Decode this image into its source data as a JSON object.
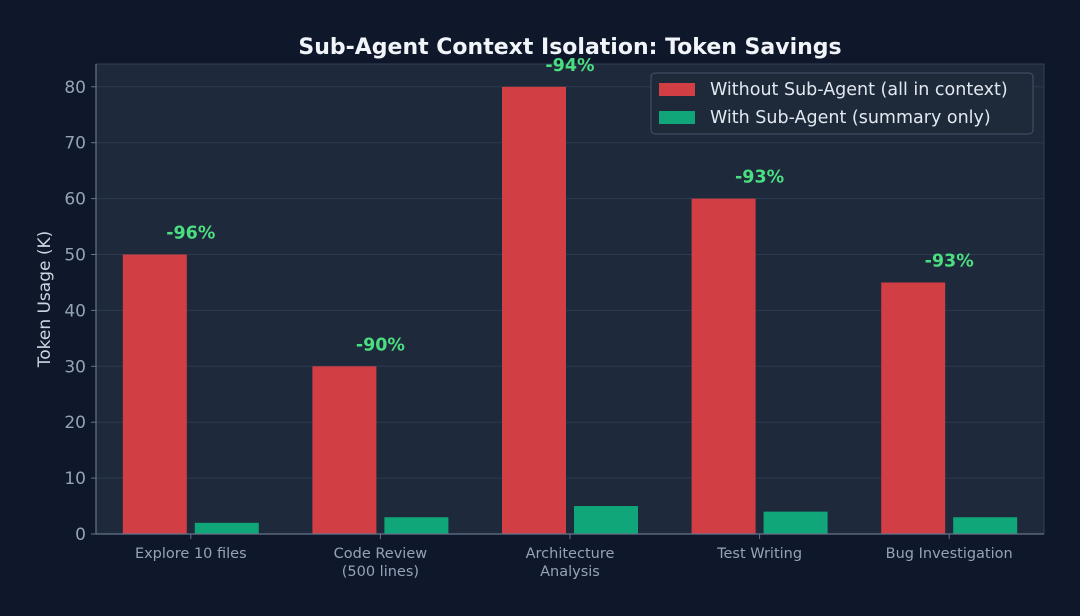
{
  "chart_data": {
    "type": "bar",
    "title": "Sub-Agent Context Isolation: Token Savings",
    "xlabel": "",
    "ylabel": "Token Usage (K)",
    "ylim": [
      0,
      84
    ],
    "yticks": [
      0,
      10,
      20,
      30,
      40,
      50,
      60,
      70,
      80
    ],
    "grid": true,
    "legend_position": "top-right",
    "categories": [
      [
        "Explore 10 files"
      ],
      [
        "Code Review",
        "(500 lines)"
      ],
      [
        "Architecture",
        "Analysis"
      ],
      [
        "Test Writing"
      ],
      [
        "Bug Investigation"
      ]
    ],
    "series": [
      {
        "name": "Without Sub-Agent (all in context)",
        "color": "#d13f45",
        "values": [
          50,
          30,
          80,
          60,
          45
        ]
      },
      {
        "name": "With Sub-Agent (summary only)",
        "color": "#10a67a",
        "values": [
          2,
          3,
          5,
          4,
          3
        ]
      }
    ],
    "annotations": [
      "-96%",
      "-90%",
      "-94%",
      "-93%",
      "-93%"
    ],
    "colors": {
      "background": "#0f172a",
      "plot_background": "#1e293b",
      "annotation": "#4ade80"
    }
  }
}
